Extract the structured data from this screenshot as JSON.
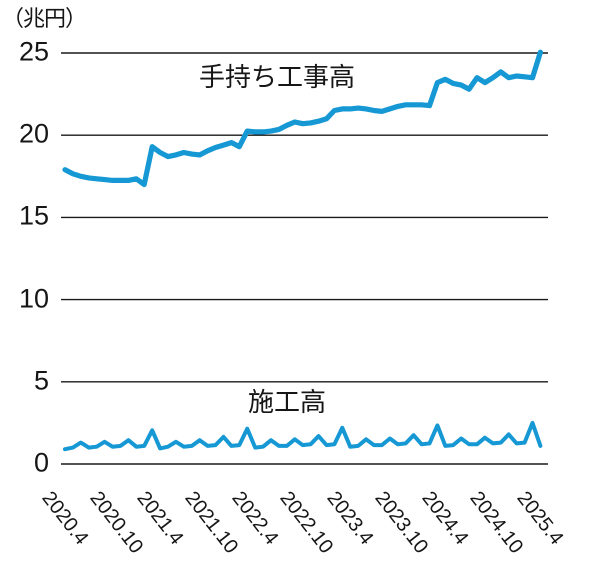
{
  "unit_label": "（兆円）",
  "chart_data": {
    "type": "line",
    "title": "",
    "unit_label": "（兆円）",
    "xlabel": "",
    "ylabel": "兆円",
    "ylim": [
      0,
      25
    ],
    "y_ticks": [
      0,
      5,
      10,
      15,
      20,
      25
    ],
    "grid": true,
    "legend_position": "inline-labels",
    "x_frequency": "monthly",
    "x_start": "2020.4",
    "x_end": "2025.4",
    "n_points": 61,
    "x_tick_labels": [
      "2020.4",
      "2020.10",
      "2021.4",
      "2021.10",
      "2022.4",
      "2022.10",
      "2023.4",
      "2023.10",
      "2024.4",
      "2024.10",
      "2025.4"
    ],
    "series": [
      {
        "name": "手持ち工事高",
        "color": "#1598d4",
        "values": [
          17.9,
          17.65,
          17.5,
          17.4,
          17.35,
          17.3,
          17.25,
          17.25,
          17.25,
          17.35,
          17.0,
          19.3,
          18.95,
          18.7,
          18.8,
          18.95,
          18.85,
          18.8,
          19.05,
          19.25,
          19.4,
          19.55,
          19.3,
          20.25,
          20.2,
          20.2,
          20.25,
          20.35,
          20.6,
          20.8,
          20.7,
          20.75,
          20.85,
          21.0,
          21.5,
          21.6,
          21.6,
          21.65,
          21.6,
          21.5,
          21.45,
          21.6,
          21.75,
          21.85,
          21.85,
          21.85,
          21.8,
          23.2,
          23.4,
          23.15,
          23.05,
          22.8,
          23.5,
          23.2,
          23.5,
          23.85,
          23.5,
          23.6,
          23.55,
          23.5,
          25.05
        ]
      },
      {
        "name": "施工高",
        "color": "#1598d4",
        "values": [
          0.9,
          1.0,
          1.3,
          1.0,
          1.05,
          1.35,
          1.05,
          1.1,
          1.45,
          1.05,
          1.1,
          2.05,
          0.95,
          1.05,
          1.35,
          1.05,
          1.1,
          1.45,
          1.1,
          1.15,
          1.65,
          1.1,
          1.15,
          2.15,
          1.0,
          1.05,
          1.45,
          1.1,
          1.1,
          1.5,
          1.15,
          1.2,
          1.7,
          1.15,
          1.2,
          2.2,
          1.05,
          1.1,
          1.5,
          1.15,
          1.15,
          1.55,
          1.2,
          1.25,
          1.75,
          1.2,
          1.25,
          2.35,
          1.1,
          1.15,
          1.55,
          1.2,
          1.2,
          1.6,
          1.25,
          1.3,
          1.8,
          1.25,
          1.3,
          2.5,
          1.1
        ]
      }
    ]
  }
}
